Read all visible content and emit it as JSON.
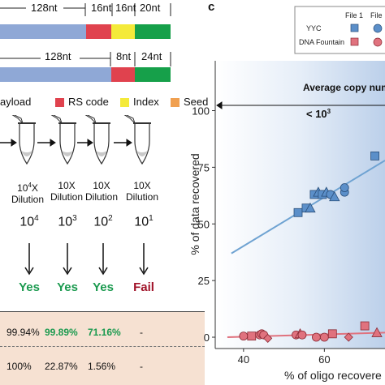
{
  "left": {
    "structure1": [
      "128nt",
      "16nt",
      "16nt",
      "20nt"
    ],
    "structure2": [
      "128nt",
      "8nt",
      "24nt"
    ],
    "legend": [
      "ayload",
      "RS code",
      "Index",
      "Seed"
    ],
    "legend_colors": {
      "payload": "#8fa8d6",
      "rs": "#e0424e",
      "index": "#f4ea3a",
      "seed": "#16a04a",
      "seed_marker": "#f0a050"
    },
    "dilutions": [
      {
        "base": "10",
        "sup": "4",
        "x": "X",
        "word": "Dilution",
        "copy_base": "10",
        "copy_sup": "4",
        "result": "Yes"
      },
      {
        "base": "10X",
        "sup": "",
        "x": "",
        "word": "Dilution",
        "copy_base": "10",
        "copy_sup": "3",
        "result": "Yes"
      },
      {
        "base": "10X",
        "sup": "",
        "x": "",
        "word": "Dilution",
        "copy_base": "10",
        "copy_sup": "2",
        "result": "Yes"
      },
      {
        "base": "10X",
        "sup": "",
        "x": "",
        "word": "Dilution",
        "copy_base": "10",
        "copy_sup": "1",
        "result": "Fail"
      }
    ],
    "yes_color": "#1b9a4f",
    "fail_color": "#a01228",
    "table_row1": [
      "99.94%",
      "99.89%",
      "71.16%",
      "-"
    ],
    "table_row2": [
      "100%",
      "22.87%",
      "1.56%",
      "-"
    ]
  },
  "panel_letter": "c",
  "chart_data": {
    "type": "scatter",
    "xlabel": "% of oligo recovere",
    "ylabel": "% of data recovered",
    "xlim": [
      33,
      75
    ],
    "ylim": [
      -5,
      122
    ],
    "xticks": [
      "40",
      "60"
    ],
    "yticks": [
      "0",
      "25",
      "50",
      "75",
      "100"
    ],
    "header": "Average copy num",
    "arrow_label": "< 10",
    "arrow_label_sup": "3",
    "legend": {
      "placement": "top-right",
      "columns": [
        "File 1",
        "File"
      ],
      "rows": [
        "YYC",
        "DNA Fountain"
      ]
    },
    "colors": {
      "yyc": "#5b8fc9",
      "dna_fountain": "#e0727e",
      "yyc_line": "#6fa3d2",
      "fountain_line": "#e0727e"
    },
    "series": [
      {
        "name": "YYC",
        "points": [
          {
            "x": 53.5,
            "y": 55,
            "m": "square"
          },
          {
            "x": 55.5,
            "y": 57,
            "m": "square"
          },
          {
            "x": 56.5,
            "y": 57,
            "m": "triangle"
          },
          {
            "x": 57.5,
            "y": 63,
            "m": "square"
          },
          {
            "x": 58.5,
            "y": 64,
            "m": "triangle"
          },
          {
            "x": 59.5,
            "y": 63,
            "m": "square"
          },
          {
            "x": 60.5,
            "y": 64,
            "m": "triangle"
          },
          {
            "x": 61.5,
            "y": 63,
            "m": "circle"
          },
          {
            "x": 62.5,
            "y": 62,
            "m": "triangle"
          },
          {
            "x": 65,
            "y": 64,
            "m": "circle"
          },
          {
            "x": 65,
            "y": 66,
            "m": "circle"
          },
          {
            "x": 72.5,
            "y": 80,
            "m": "square"
          }
        ],
        "fit": [
          [
            37,
            37
          ],
          [
            75,
            78
          ]
        ]
      },
      {
        "name": "DNA Fountain",
        "points": [
          {
            "x": 40,
            "y": 0.5,
            "m": "circle"
          },
          {
            "x": 42,
            "y": 0.5,
            "m": "square"
          },
          {
            "x": 44,
            "y": 1,
            "m": "circle"
          },
          {
            "x": 44.5,
            "y": 1.5,
            "m": "circle"
          },
          {
            "x": 45,
            "y": 1,
            "m": "circle"
          },
          {
            "x": 46,
            "y": -0.5,
            "m": "diamond"
          },
          {
            "x": 53,
            "y": 1,
            "m": "circle"
          },
          {
            "x": 54,
            "y": 1.5,
            "m": "triangle"
          },
          {
            "x": 54.5,
            "y": 1,
            "m": "circle"
          },
          {
            "x": 58,
            "y": 0,
            "m": "circle"
          },
          {
            "x": 60,
            "y": 0,
            "m": "circle"
          },
          {
            "x": 62,
            "y": 1.5,
            "m": "square"
          },
          {
            "x": 66,
            "y": 0,
            "m": "diamond"
          },
          {
            "x": 70,
            "y": 5,
            "m": "square"
          },
          {
            "x": 73,
            "y": 2,
            "m": "triangle"
          }
        ],
        "fit": [
          [
            36,
            0
          ],
          [
            75,
            2
          ]
        ]
      }
    ]
  }
}
